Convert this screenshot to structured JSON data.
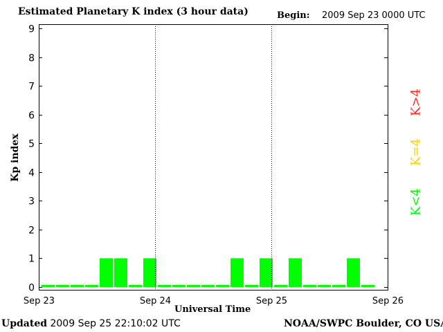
{
  "header": {
    "title": "Estimated Planetary K index (3 hour data)",
    "begin_label": "Begin:",
    "begin_value": "2009 Sep 23 0000 UTC"
  },
  "footer": {
    "updated_label": "Updated",
    "updated_value": "2009 Sep 25 22:10:02 UTC",
    "credit": "NOAA/SWPC Boulder, CO USA"
  },
  "legend": {
    "gt": {
      "label": "K>4",
      "color": "#ff2a1a"
    },
    "eq": {
      "label": "K=4",
      "color": "#ffd000"
    },
    "lt": {
      "label": "K<4",
      "color": "#00ff00"
    }
  },
  "chart_data": {
    "type": "bar",
    "title": "Estimated Planetary K index (3 hour data)",
    "xlabel": "Universal Time",
    "ylabel": "Kp index",
    "ylim": [
      0,
      9
    ],
    "yticks": [
      "0",
      "1",
      "2",
      "3",
      "4",
      "5",
      "6",
      "7",
      "8",
      "9"
    ],
    "xticks": [
      "Sep 23",
      "Sep 24",
      "Sep 25",
      "Sep 26"
    ],
    "interval_hours": 3,
    "grid": false,
    "day_dividers": "dotted",
    "bar_color": "#00ff00",
    "series": [
      {
        "values": [
          0,
          0,
          0,
          0,
          1,
          1,
          0,
          1,
          0,
          0,
          0,
          0,
          0,
          1,
          0,
          1,
          0,
          1,
          0,
          0,
          0,
          1,
          0
        ]
      }
    ]
  }
}
